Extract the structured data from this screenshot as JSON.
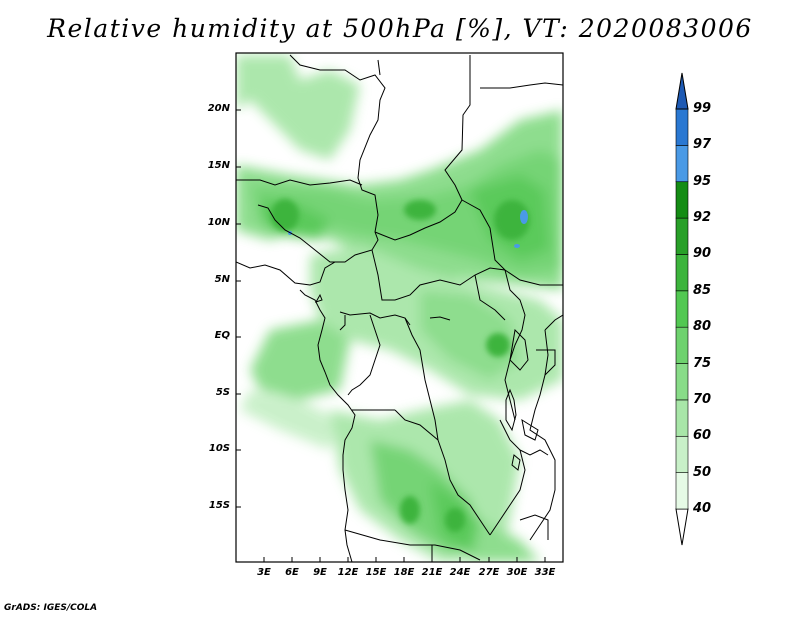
{
  "title": "Relative humidity at 500hPa [%], VT: 2020083006",
  "credit": "GrADS: IGES/COLA",
  "map": {
    "lat_labels": [
      "20N",
      "15N",
      "10N",
      "5N",
      "EQ",
      "5S",
      "10S",
      "15S"
    ],
    "lon_labels": [
      "3E",
      "6E",
      "9E",
      "12E",
      "15E",
      "18E",
      "21E",
      "24E",
      "27E",
      "30E",
      "33E"
    ],
    "lat_range": [
      -20,
      25
    ],
    "lon_range": [
      0,
      35
    ]
  },
  "colorbar": {
    "levels": [
      "40",
      "50",
      "60",
      "70",
      "75",
      "80",
      "85",
      "90",
      "92",
      "95",
      "97",
      "99"
    ],
    "colors": [
      "#ffffff",
      "#e6fae6",
      "#c8f0c8",
      "#a8e6a8",
      "#88dc88",
      "#6ed26e",
      "#52c852",
      "#3cb43c",
      "#28a028",
      "#148c14",
      "#4a9ae6",
      "#2a78d2",
      "#1e5ab4"
    ]
  }
}
